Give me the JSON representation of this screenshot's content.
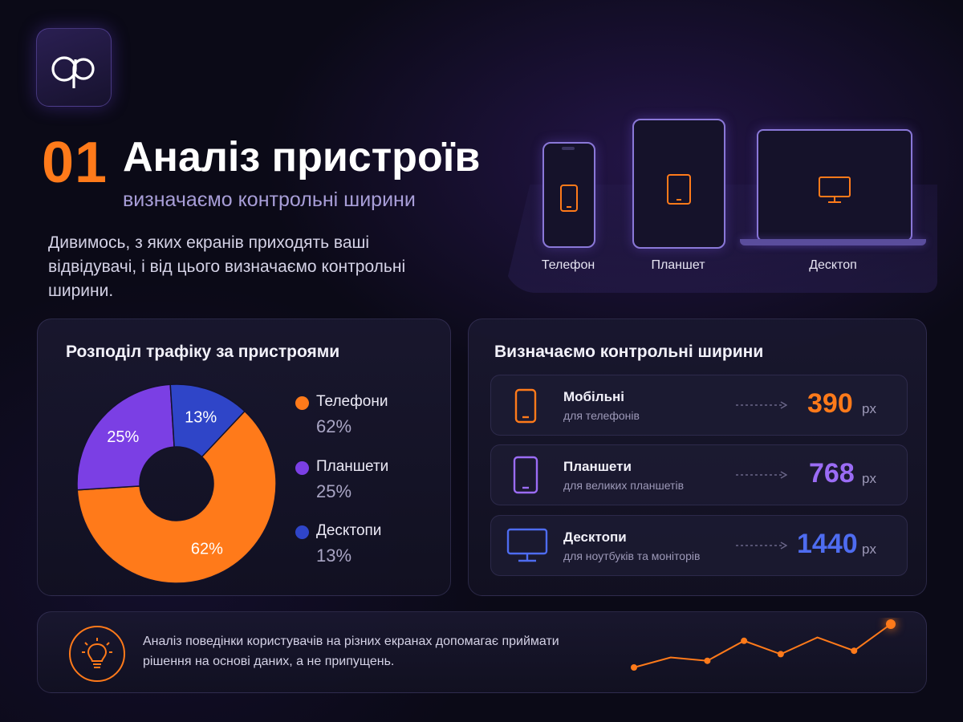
{
  "logo": {
    "text": "ap"
  },
  "header": {
    "number": "01",
    "title": "Аналіз пристроїв",
    "subtitle": "визначаємо контрольні ширини"
  },
  "intro": "Дивимось, з яких екранів приходять ваші відвідувачі, і від цього визначаємо контрольні ширини.",
  "devices": [
    {
      "label": "Телефон",
      "icon": "phone-icon"
    },
    {
      "label": "Планшет",
      "icon": "tablet-icon"
    },
    {
      "label": "Десктоп",
      "icon": "monitor-icon"
    }
  ],
  "traffic_card": {
    "title": "Розподіл трафіку за пристроями",
    "legend": [
      {
        "name": "Телефони",
        "value": "62%",
        "color": "#ff7a1a"
      },
      {
        "name": "Планшети",
        "value": "25%",
        "color": "#7b3fe4"
      },
      {
        "name": "Десктопи",
        "value": "13%",
        "color": "#2f45c8"
      }
    ]
  },
  "chart_data": {
    "type": "pie",
    "title": "Розподіл трафіку за пристроями",
    "categories": [
      "Телефони",
      "Планшети",
      "Десктопи"
    ],
    "values": [
      62,
      25,
      13
    ],
    "labels": [
      "62%",
      "25%",
      "13%"
    ],
    "colors": [
      "#ff7a1a",
      "#7b3fe4",
      "#2f45c8"
    ],
    "donut": true,
    "legend": "right"
  },
  "widths_card": {
    "title": "Визначаємо контрольні ширини",
    "rows": [
      {
        "name": "Мобільні",
        "desc": "для телефонів",
        "value": "390",
        "unit": "px",
        "color": "#ff7a1a",
        "icon": "phone-icon"
      },
      {
        "name": "Планшети",
        "desc": "для великих планшетів",
        "value": "768",
        "unit": "px",
        "color": "#9b6cf5",
        "icon": "tablet-icon"
      },
      {
        "name": "Десктопи",
        "desc": "для ноутбуків та моніторів",
        "value": "1440",
        "unit": "px",
        "color": "#4e6cf0",
        "icon": "monitor-icon"
      }
    ]
  },
  "footer": {
    "text": "Аналіз поведінки користувачів на різних екранах допомагає приймати рішення на основі даних, а не припущень.",
    "icon": "lightbulb-icon",
    "sparkline": [
      2,
      5,
      4,
      10,
      6,
      11,
      7,
      15
    ]
  }
}
